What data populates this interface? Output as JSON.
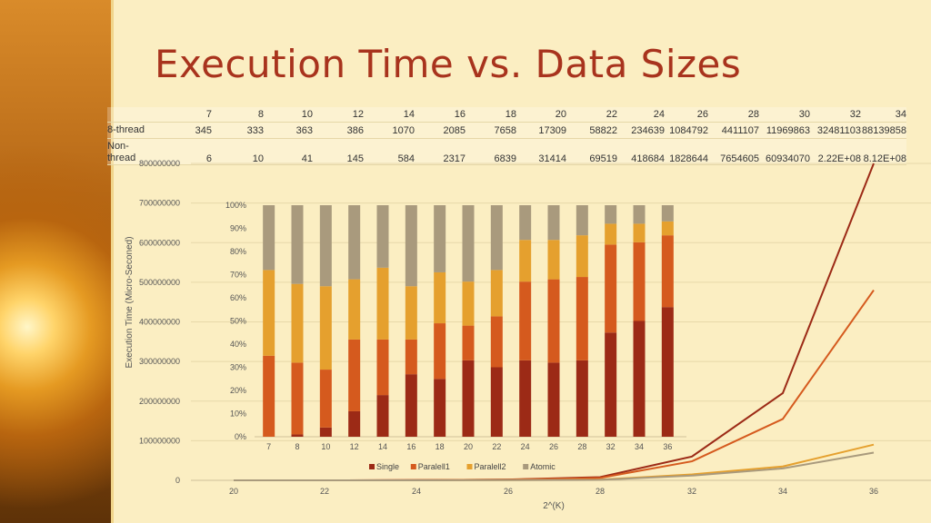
{
  "title": "Execution Time vs. Data Sizes",
  "table": {
    "header": [
      "7",
      "8",
      "10",
      "12",
      "14",
      "16",
      "18",
      "20",
      "22",
      "24",
      "26",
      "28",
      "30",
      "32",
      "34"
    ],
    "rows": [
      {
        "label": "8-thread",
        "values": [
          "345",
          "333",
          "363",
          "386",
          "1070",
          "2085",
          "7658",
          "17309",
          "58822",
          "234639",
          "1084792",
          "4411107",
          "11969863",
          "32481103",
          "88139858"
        ]
      },
      {
        "label": "Non-\nthread",
        "values": [
          "6",
          "10",
          "41",
          "145",
          "584",
          "2317",
          "6839",
          "31414",
          "69519",
          "418684",
          "1828644",
          "7654605",
          "60934070",
          "2.22E+08",
          "8.12E+08"
        ]
      }
    ]
  },
  "colors": {
    "single": "#9c2a16",
    "parallel1": "#d55a1e",
    "parallel2": "#e5a02e",
    "atomic": "#a99a7d",
    "title": "#a8331d"
  },
  "chart_data": [
    {
      "type": "line",
      "x": [
        20,
        22,
        24,
        26,
        28,
        32,
        34,
        36
      ],
      "xlabel": "2^(K)",
      "ylabel": "Execution Time (Micro-Seconed)",
      "ylim": [
        0,
        800000000
      ],
      "yticks": [
        0,
        100000000,
        200000000,
        300000000,
        400000000,
        500000000,
        600000000,
        700000000,
        800000000
      ],
      "ytick_labels": [
        "0",
        "100000000",
        "200000000",
        "300000000",
        "400000000",
        "500000000",
        "600000000",
        "700000000",
        "800000000"
      ],
      "grid": true,
      "series": [
        {
          "name": "",
          "color": "#9c2a16",
          "values": [
            0,
            0,
            500000,
            2000000,
            8000000,
            60000000,
            220000000,
            800000000
          ]
        },
        {
          "name": "",
          "color": "#d55a1e",
          "values": [
            0,
            0,
            400000,
            1500000,
            6000000,
            48000000,
            155000000,
            480000000
          ]
        },
        {
          "name": "",
          "color": "#e5a02e",
          "values": [
            0,
            0,
            100000,
            500000,
            1500000,
            15000000,
            35000000,
            90000000
          ]
        },
        {
          "name": "",
          "color": "#a99a7d",
          "values": [
            0,
            0,
            100000,
            400000,
            1200000,
            12000000,
            30000000,
            70000000
          ]
        }
      ]
    },
    {
      "type": "bar",
      "stacked_percent": true,
      "categories": [
        "7",
        "8",
        "10",
        "12",
        "14",
        "16",
        "18",
        "20",
        "22",
        "24",
        "26",
        "28",
        "32",
        "34",
        "36"
      ],
      "ylim": [
        0,
        100
      ],
      "ytick_labels": [
        "0%",
        "10%",
        "20%",
        "30%",
        "40%",
        "50%",
        "60%",
        "70%",
        "80%",
        "90%",
        "100%"
      ],
      "legend": "bottom",
      "series": [
        {
          "name": "Single",
          "color": "#9c2a16",
          "values": [
            0,
            1,
            4,
            11,
            18,
            27,
            25,
            33,
            30,
            33,
            32,
            33,
            45,
            50,
            56
          ]
        },
        {
          "name": "Paralell1",
          "color": "#d55a1e",
          "values": [
            35,
            31,
            25,
            31,
            24,
            15,
            24,
            15,
            22,
            34,
            36,
            36,
            38,
            34,
            31
          ]
        },
        {
          "name": "Paralell2",
          "color": "#e5a02e",
          "values": [
            37,
            34,
            36,
            26,
            31,
            23,
            22,
            19,
            20,
            18,
            17,
            18,
            9,
            8,
            6
          ]
        },
        {
          "name": "Atomic",
          "color": "#a99a7d",
          "values": [
            28,
            34,
            35,
            32,
            27,
            35,
            29,
            33,
            28,
            15,
            15,
            13,
            8,
            8,
            7
          ]
        }
      ]
    }
  ]
}
